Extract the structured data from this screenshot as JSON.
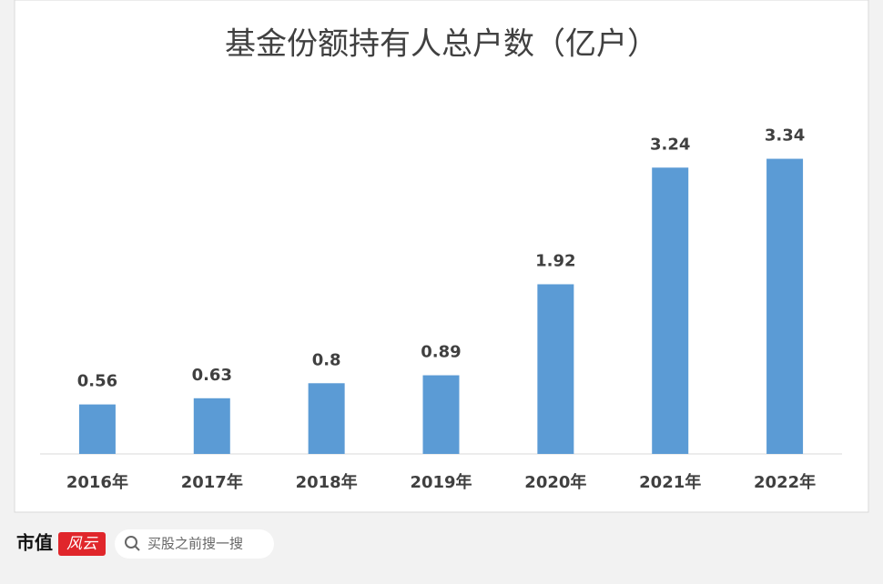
{
  "chart_data": {
    "type": "bar",
    "title": "基金份额持有人总户数（亿户）",
    "categories": [
      "2016年",
      "2017年",
      "2018年",
      "2019年",
      "2020年",
      "2021年",
      "2022年"
    ],
    "values": [
      0.56,
      0.63,
      0.8,
      0.89,
      1.92,
      3.24,
      3.34
    ],
    "color": "#5b9bd5",
    "ylim": [
      0,
      3.5
    ]
  },
  "footer": {
    "logo": "市值",
    "badge": "风云",
    "search": "买股之前搜一搜"
  }
}
